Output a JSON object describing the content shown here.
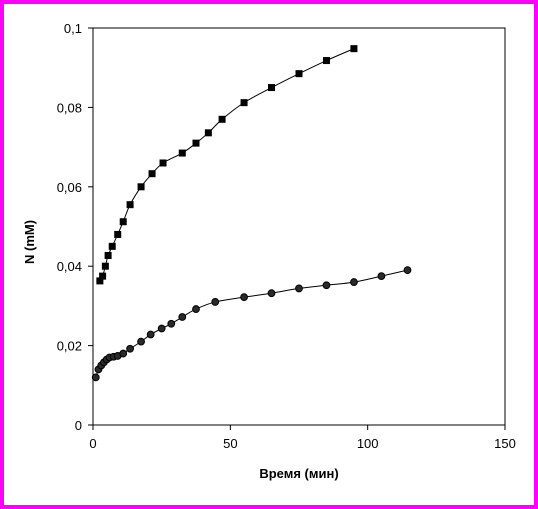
{
  "colors": {
    "frame_border": "#ff00ff",
    "background": "#ffffff",
    "axis": "#000000",
    "series": "#000000"
  },
  "chart_data": {
    "type": "scatter",
    "title": "",
    "xlabel": "Время (мин)",
    "ylabel": "N (mM)",
    "xlim": [
      0,
      150
    ],
    "ylim": [
      0,
      0.1
    ],
    "x_ticks": [
      {
        "value": 0,
        "label": "0"
      },
      {
        "value": 50,
        "label": "50"
      },
      {
        "value": 100,
        "label": "100"
      },
      {
        "value": 150,
        "label": "150"
      }
    ],
    "y_ticks": [
      {
        "value": 0,
        "label": "0"
      },
      {
        "value": 0.02,
        "label": "0,02"
      },
      {
        "value": 0.04,
        "label": "0,04"
      },
      {
        "value": 0.06,
        "label": "0,06"
      },
      {
        "value": 0.08,
        "label": "0,08"
      },
      {
        "value": 0.1,
        "label": "0,1"
      }
    ],
    "grid": false,
    "legend": "none",
    "series": [
      {
        "marker": "square",
        "line": "smooth",
        "points": [
          [
            2.5,
            0.0363
          ],
          [
            3.5,
            0.0375
          ],
          [
            4.5,
            0.04
          ],
          [
            5.5,
            0.0427
          ],
          [
            7,
            0.045
          ],
          [
            9,
            0.048
          ],
          [
            11,
            0.0512
          ],
          [
            13.5,
            0.0555
          ],
          [
            17.5,
            0.06
          ],
          [
            21.5,
            0.0633
          ],
          [
            25.5,
            0.066
          ],
          [
            32.5,
            0.0685
          ],
          [
            37.5,
            0.071
          ],
          [
            42,
            0.0736
          ],
          [
            47,
            0.077
          ],
          [
            55,
            0.0812
          ],
          [
            65,
            0.085
          ],
          [
            75,
            0.0885
          ],
          [
            85,
            0.0918
          ],
          [
            95,
            0.0948
          ]
        ]
      },
      {
        "marker": "circle",
        "line": "smooth",
        "points": [
          [
            1,
            0.012
          ],
          [
            2,
            0.014
          ],
          [
            3,
            0.015
          ],
          [
            4,
            0.0158
          ],
          [
            5,
            0.0165
          ],
          [
            6,
            0.017
          ],
          [
            7.5,
            0.0172
          ],
          [
            9,
            0.0174
          ],
          [
            11,
            0.018
          ],
          [
            13.5,
            0.0192
          ],
          [
            17.5,
            0.021
          ],
          [
            21,
            0.0228
          ],
          [
            25,
            0.0243
          ],
          [
            28.5,
            0.0255
          ],
          [
            32.5,
            0.0272
          ],
          [
            37.5,
            0.0292
          ],
          [
            44.5,
            0.031
          ],
          [
            55,
            0.0322
          ],
          [
            65,
            0.0332
          ],
          [
            75,
            0.0344
          ],
          [
            85,
            0.0352
          ],
          [
            95,
            0.036
          ],
          [
            105,
            0.0375
          ],
          [
            114.5,
            0.039
          ]
        ]
      }
    ]
  }
}
